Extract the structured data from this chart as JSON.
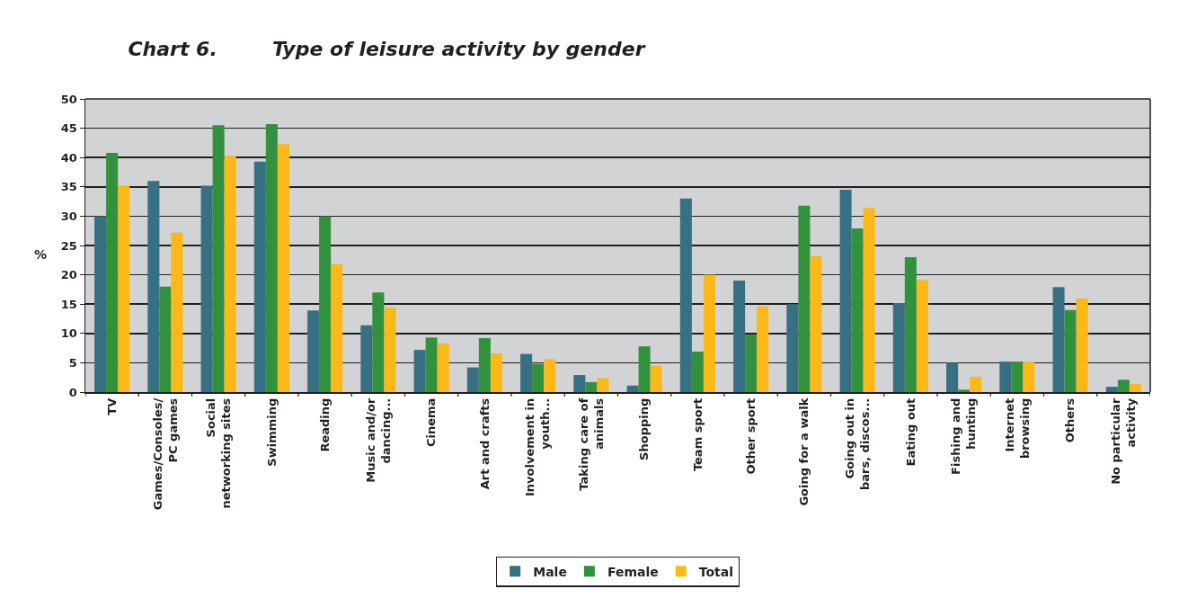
{
  "chart_data": {
    "type": "bar",
    "title": "Chart 6.        Type of leisure activity by gender",
    "ylabel": "%",
    "categories": [
      "TV",
      "Games/Consoles/ PC games",
      "Social networking sites",
      "Swimming",
      "Reading",
      "Music and/or dancing...",
      "Cinema",
      "Art and crafts",
      "Involvement in youth...",
      "Taking care of animals",
      "Shopping",
      "Team sport",
      "Other sport",
      "Going for a walk",
      "Going out in bars, discos...",
      "Eating out",
      "Fishing and hunting",
      "Internet browsing",
      "Others",
      "No particular activity"
    ],
    "series": [
      {
        "name": "Male",
        "color": "#387083",
        "values": [
          30,
          36,
          35.2,
          39.3,
          13.9,
          11.4,
          7.2,
          4.2,
          6.5,
          2.9,
          1.1,
          33,
          19,
          15,
          34.5,
          15.2,
          5,
          5.2,
          17.9,
          0.9
        ]
      },
      {
        "name": "Female",
        "color": "#31913c",
        "values": [
          40.8,
          18,
          45.5,
          45.7,
          30,
          17,
          9.3,
          9.2,
          4.8,
          1.7,
          7.8,
          6.9,
          9.8,
          31.8,
          27.9,
          23,
          0.4,
          5.2,
          14,
          2.1
        ]
      },
      {
        "name": "Total",
        "color": "#fbb817",
        "values": [
          35.2,
          27.2,
          40.3,
          42.3,
          21.8,
          14.4,
          8.3,
          6.6,
          5.6,
          2.4,
          4.5,
          20,
          14.6,
          23.2,
          31.4,
          19.1,
          2.6,
          5.2,
          16,
          1.4
        ]
      }
    ],
    "ylim": [
      0,
      50
    ],
    "yticks": [
      0,
      5,
      10,
      15,
      20,
      25,
      30,
      35,
      40,
      45,
      50
    ],
    "grid": "y",
    "legend": "bottom"
  }
}
